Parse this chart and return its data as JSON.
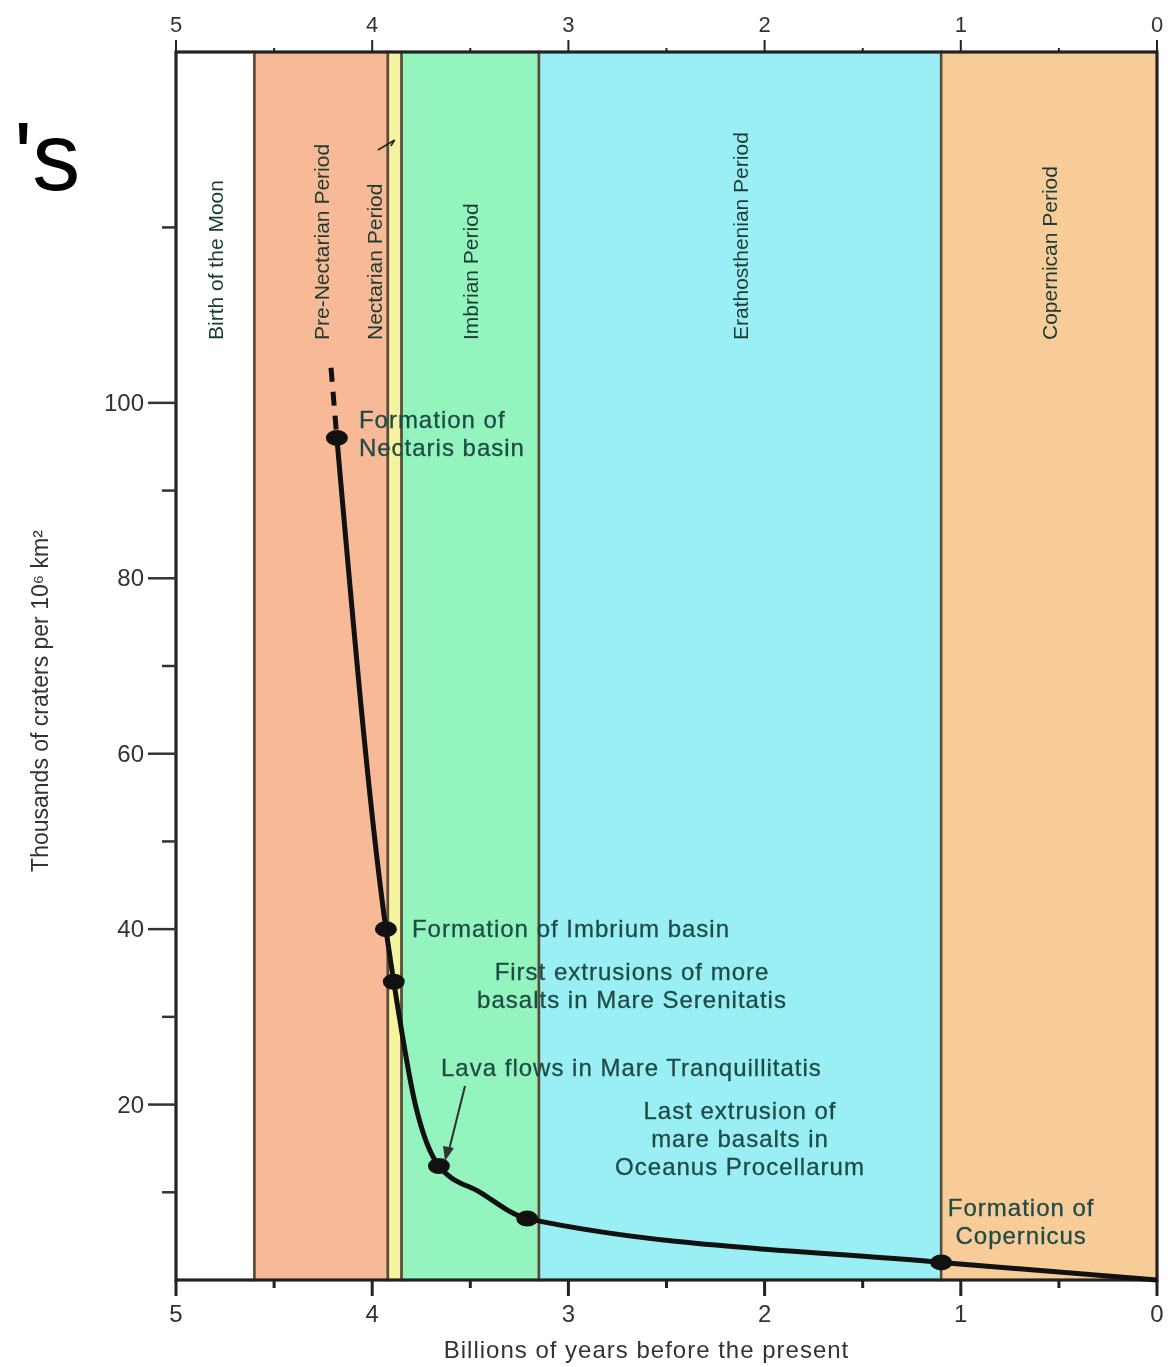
{
  "chart_data": {
    "type": "line",
    "xlabel": "Billions of years before the present",
    "ylabel": "Thousands of craters per 10⁶ km²",
    "xlim": [
      5,
      0
    ],
    "xticks": [
      5,
      {
        "value": 4.5,
        "label": null
      },
      4,
      {
        "value": 3.5,
        "label": null
      },
      3,
      {
        "value": 2.5,
        "label": null
      },
      2,
      {
        "value": 1.5,
        "label": null
      },
      1,
      {
        "value": 0.5,
        "label": null
      },
      0
    ],
    "x2lim": [
      5,
      0
    ],
    "x2ticks": [
      5,
      {
        "value": 4.5,
        "label": null
      },
      4,
      {
        "value": 3.5,
        "label": null
      },
      3,
      {
        "value": 2.5,
        "label": null
      },
      2,
      {
        "value": 1.5,
        "label": null
      },
      1,
      {
        "value": 0.5,
        "label": null
      },
      0
    ],
    "ylim": [
      0,
      140
    ],
    "yticks": [
      {
        "value": 10,
        "label": null
      },
      20,
      {
        "value": 30,
        "label": null
      },
      40,
      {
        "value": 50,
        "label": null
      },
      60,
      {
        "value": 70,
        "label": null
      },
      80,
      {
        "value": 90,
        "label": null
      },
      100,
      {
        "value": 120,
        "label": null
      }
    ],
    "grid": false,
    "bands": [
      {
        "axis": "x",
        "from": 5,
        "to": 4.6,
        "label": "Birth of the Moon",
        "color": "#ffffff"
      },
      {
        "axis": "x",
        "from": 4.6,
        "to": 3.92,
        "label": "Pre-Nectarian Period",
        "color": "#f7b996"
      },
      {
        "axis": "x",
        "from": 3.92,
        "to": 3.85,
        "label": "Nectarian Period",
        "color": "#f5f3a0"
      },
      {
        "axis": "x",
        "from": 3.85,
        "to": 3.15,
        "label": "Imbrian Period",
        "color": "#93f5bd"
      },
      {
        "axis": "x",
        "from": 3.15,
        "to": 1.1,
        "label": "Erathosthenian Period",
        "color": "#9aeff5"
      },
      {
        "axis": "x",
        "from": 1.1,
        "to": 0,
        "label": "Copernican Period",
        "color": "#f8cc98"
      }
    ],
    "series": [
      {
        "type": "line",
        "color": "#111111",
        "marker": "none",
        "line_style": "dashed",
        "x": [
          4.21,
          4.18
        ],
        "values": [
          104,
          96
        ]
      },
      {
        "type": "line",
        "color": "#111111",
        "marker": "none",
        "line_style": "solid",
        "x": [
          4.18,
          3.93,
          3.89,
          3.78,
          3.66,
          3.45,
          3.21,
          1.1,
          0
        ],
        "values": [
          96,
          40,
          34,
          20,
          13,
          10,
          7,
          2,
          0
        ]
      },
      {
        "type": "scatter",
        "color": "#111111",
        "marker": "circle",
        "x": [
          4.18,
          3.93,
          3.89,
          3.66,
          3.21,
          1.1
        ],
        "values": [
          96,
          40,
          34,
          13,
          7,
          2
        ]
      }
    ],
    "annotations": [
      {
        "text": "Formation of\nNectaris basin",
        "x": 4.18,
        "y": 96
      },
      {
        "text": "Formation of Imbrium basin",
        "x": 3.93,
        "y": 40
      },
      "First extrusions of more\nbasalts in Mare Serenitatis",
      "Lava flows in Mare Tranquillitatis",
      "Last extrusion of\nmare basalts in\nOceanus Procellarum",
      {
        "text": "Formation of\nCopernicus",
        "x": 1.1,
        "y": 2
      },
      "'s"
    ]
  }
}
